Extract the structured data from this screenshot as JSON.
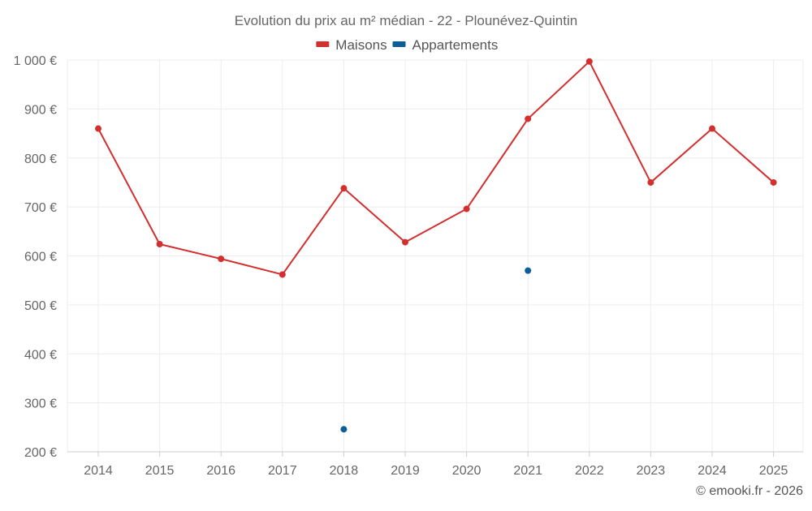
{
  "chart_data": {
    "type": "line",
    "title": "Evolution du prix au m² médian - 22 - Plounévez-Quintin",
    "categories": [
      "2014",
      "2015",
      "2016",
      "2017",
      "2018",
      "2019",
      "2020",
      "2021",
      "2022",
      "2023",
      "2024",
      "2025"
    ],
    "series": [
      {
        "name": "Maisons",
        "color": "#d32f2f",
        "values": [
          860,
          624,
          594,
          562,
          738,
          628,
          696,
          880,
          997,
          750,
          860,
          750
        ]
      },
      {
        "name": "Appartements",
        "color": "#0b5e9a",
        "values": [
          null,
          null,
          null,
          null,
          246,
          null,
          null,
          570,
          null,
          null,
          null,
          null
        ]
      }
    ],
    "ylim": [
      200,
      1000
    ],
    "yticks": [
      200,
      300,
      400,
      500,
      600,
      700,
      800,
      900,
      1000
    ],
    "ytick_labels": [
      "200 €",
      "300 €",
      "400 €",
      "500 €",
      "600 €",
      "700 €",
      "800 €",
      "900 €",
      "1 000 €"
    ],
    "xlabel": "",
    "ylabel": "",
    "grid": true,
    "legend_position": "top-center"
  },
  "credit": "© emooki.fr - 2026"
}
